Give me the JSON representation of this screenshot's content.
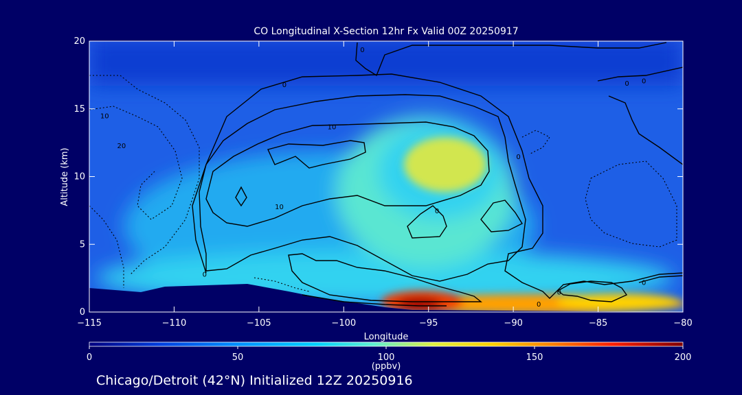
{
  "chart_data": {
    "type": "heatmap",
    "title": "CO Longitudinal X-Section 12hr  Fx Valid 00Z 20250917",
    "xlabel": "Longitude",
    "ylabel": "Altitude (km)",
    "xlim": [
      -115,
      -80
    ],
    "ylim": [
      0,
      20
    ],
    "x_ticks": [
      -115,
      -110,
      -105,
      -100,
      -95,
      -90,
      -85,
      -80
    ],
    "x_tick_labels": [
      "−115",
      "−110",
      "−105",
      "−100",
      "−95",
      "−90",
      "−85",
      "−80"
    ],
    "y_ticks": [
      0,
      5,
      10,
      15,
      20
    ],
    "y_tick_labels": [
      "0",
      "5",
      "10",
      "15",
      "20"
    ],
    "contour_labels": [
      {
        "text": "0",
        "lon": -98.9,
        "alt": 19.4
      },
      {
        "text": "0",
        "lon": -103.5,
        "alt": 16.8
      },
      {
        "text": "0",
        "lon": -82.3,
        "alt": 17.1
      },
      {
        "text": "0",
        "lon": -82.3,
        "alt": 2.2
      },
      {
        "text": "0",
        "lon": -108.2,
        "alt": 2.8
      },
      {
        "text": "0",
        "lon": -89.7,
        "alt": 11.5
      },
      {
        "text": "0",
        "lon": -94.5,
        "alt": 7.5
      },
      {
        "text": "0",
        "lon": -88.5,
        "alt": 0.6
      },
      {
        "text": "0",
        "lon": -87.3,
        "alt": 1.5
      },
      {
        "text": "0",
        "lon": -83.3,
        "alt": 16.9
      },
      {
        "text": "10",
        "lon": -114.1,
        "alt": 14.5
      },
      {
        "text": "10",
        "lon": -100.7,
        "alt": 13.7
      },
      {
        "text": "10",
        "lon": -103.8,
        "alt": 7.8
      },
      {
        "text": "20",
        "lon": -113.1,
        "alt": 12.3
      }
    ],
    "colorbar": {
      "min": 0,
      "max": 200,
      "ticks": [
        0,
        50,
        100,
        150,
        200
      ],
      "tick_labels": [
        "0",
        "50",
        "100",
        "150",
        "200"
      ],
      "label": "(ppbv)",
      "colors": [
        "#000080",
        "#0040e0",
        "#0080ff",
        "#00c8ff",
        "#40f0e0",
        "#c0f060",
        "#ffff00",
        "#ffa000",
        "#ff3000",
        "#a00000"
      ]
    },
    "field": {
      "colors": {
        "background_blue": "#1e5fe6",
        "upper_blue": "#0a3cd2",
        "mid_cyan": "#23aaf0",
        "light_cyan": "#32d2f0",
        "aqua": "#5ae6d2",
        "yellow_green": "#d2e650",
        "orange": "#ffa000",
        "red": "#f03c00",
        "dark_red": "#a00000",
        "terrain": "#000066",
        "contour": "#000000"
      }
    }
  },
  "footer": {
    "caption": "Chicago/Detroit (42°N) Initialized 12Z 20250916"
  }
}
